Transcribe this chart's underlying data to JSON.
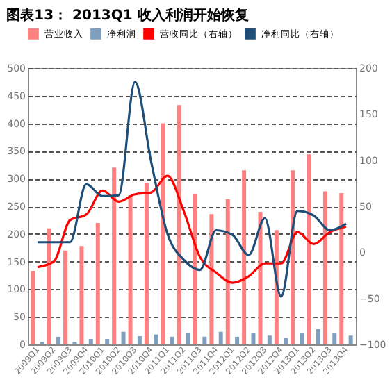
{
  "chart_data": {
    "type": "bar",
    "title": "图表13：  2013Q1 收入利润开始恢复",
    "categories": [
      "2009Q1",
      "2009Q2",
      "2009Q3",
      "2009Q4",
      "2010Q1",
      "2010Q2",
      "2010Q3",
      "2010Q4",
      "2011Q1",
      "2011Q2",
      "2011Q3",
      "2011Q4",
      "2012Q1",
      "2012Q2",
      "2012Q3",
      "2012Q4",
      "2013Q1",
      "2013Q2",
      "2013Q3",
      "2013Q4"
    ],
    "series": [
      {
        "name": "营业收入",
        "color": "#ff8080",
        "values": [
          133,
          210,
          170,
          178,
          220,
          320,
          270,
          292,
          400,
          433,
          272,
          236,
          263,
          315,
          240,
          207,
          315,
          344,
          277,
          274
        ]
      },
      {
        "name": "净利润",
        "color": "#7f9fbf",
        "values": [
          5,
          14,
          5,
          10,
          10,
          23,
          15,
          18,
          14,
          21,
          14,
          23,
          14,
          20,
          16,
          12,
          20,
          28,
          20,
          16
        ]
      },
      {
        "name": "营收同比（右轴）",
        "type": "line",
        "axis": "y2",
        "color": "#ff0000",
        "values": [
          -16,
          -10,
          35,
          41,
          67,
          55,
          63,
          65,
          83,
          45,
          -5,
          -22,
          -33,
          -26,
          -12,
          -12,
          22,
          9,
          22,
          28
        ]
      },
      {
        "name": "净利同比（右轴）",
        "type": "line",
        "axis": "y2",
        "color": "#1f4e79",
        "values": [
          11,
          11,
          11,
          74,
          61,
          62,
          185,
          98,
          20,
          -8,
          -19,
          24,
          19,
          -3,
          37,
          -48,
          45,
          40,
          24,
          31
        ]
      }
    ],
    "ylim": [
      0,
      500
    ],
    "yticks": [
      0,
      50,
      100,
      150,
      200,
      250,
      300,
      350,
      400,
      450,
      500
    ],
    "y2lim": [
      -100,
      200
    ],
    "y2ticks": [
      -100,
      -50,
      0,
      50,
      100,
      150,
      200
    ],
    "grid": "y",
    "legend": "top",
    "marker": "none",
    "line_style": "solid"
  }
}
